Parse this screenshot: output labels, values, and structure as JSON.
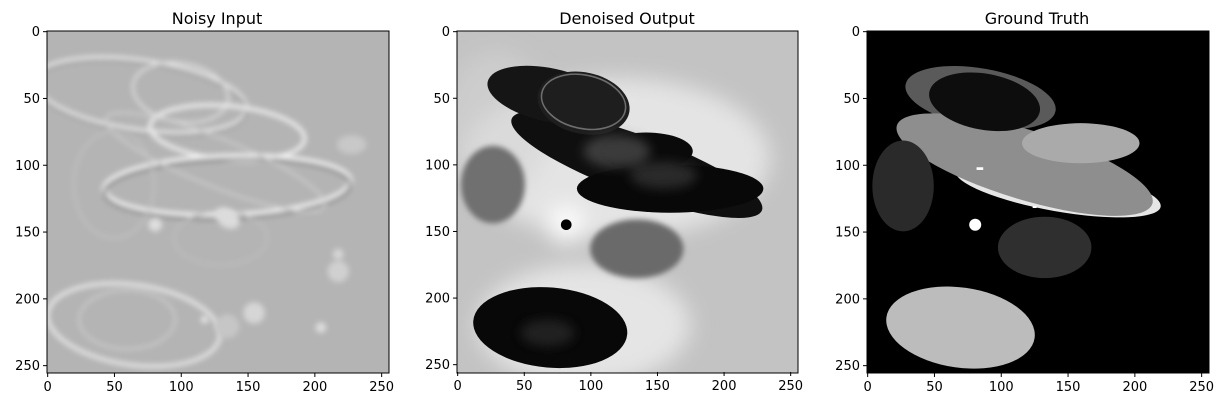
{
  "figure": {
    "panels": [
      {
        "id": "noisy",
        "title": "Noisy Input",
        "background": "#b4b4b4",
        "x_ticks": [
          "0",
          "50",
          "100",
          "150",
          "200",
          "250"
        ],
        "y_ticks": [
          "0",
          "50",
          "100",
          "150",
          "200",
          "250"
        ]
      },
      {
        "id": "denoised",
        "title": "Denoised Output",
        "background": "#c3c3c3",
        "x_ticks": [
          "0",
          "50",
          "100",
          "150",
          "200",
          "250"
        ],
        "y_ticks": [
          "0",
          "50",
          "100",
          "150",
          "200",
          "250"
        ]
      },
      {
        "id": "truth",
        "title": "Ground Truth",
        "background": "#000000",
        "x_ticks": [
          "0",
          "50",
          "100",
          "150",
          "200",
          "250"
        ],
        "y_ticks": [
          "0",
          "50",
          "100",
          "150",
          "200",
          "250"
        ]
      }
    ],
    "tick_values": [
      0,
      50,
      100,
      150,
      200,
      250
    ],
    "image_extent": [
      256,
      256
    ]
  }
}
